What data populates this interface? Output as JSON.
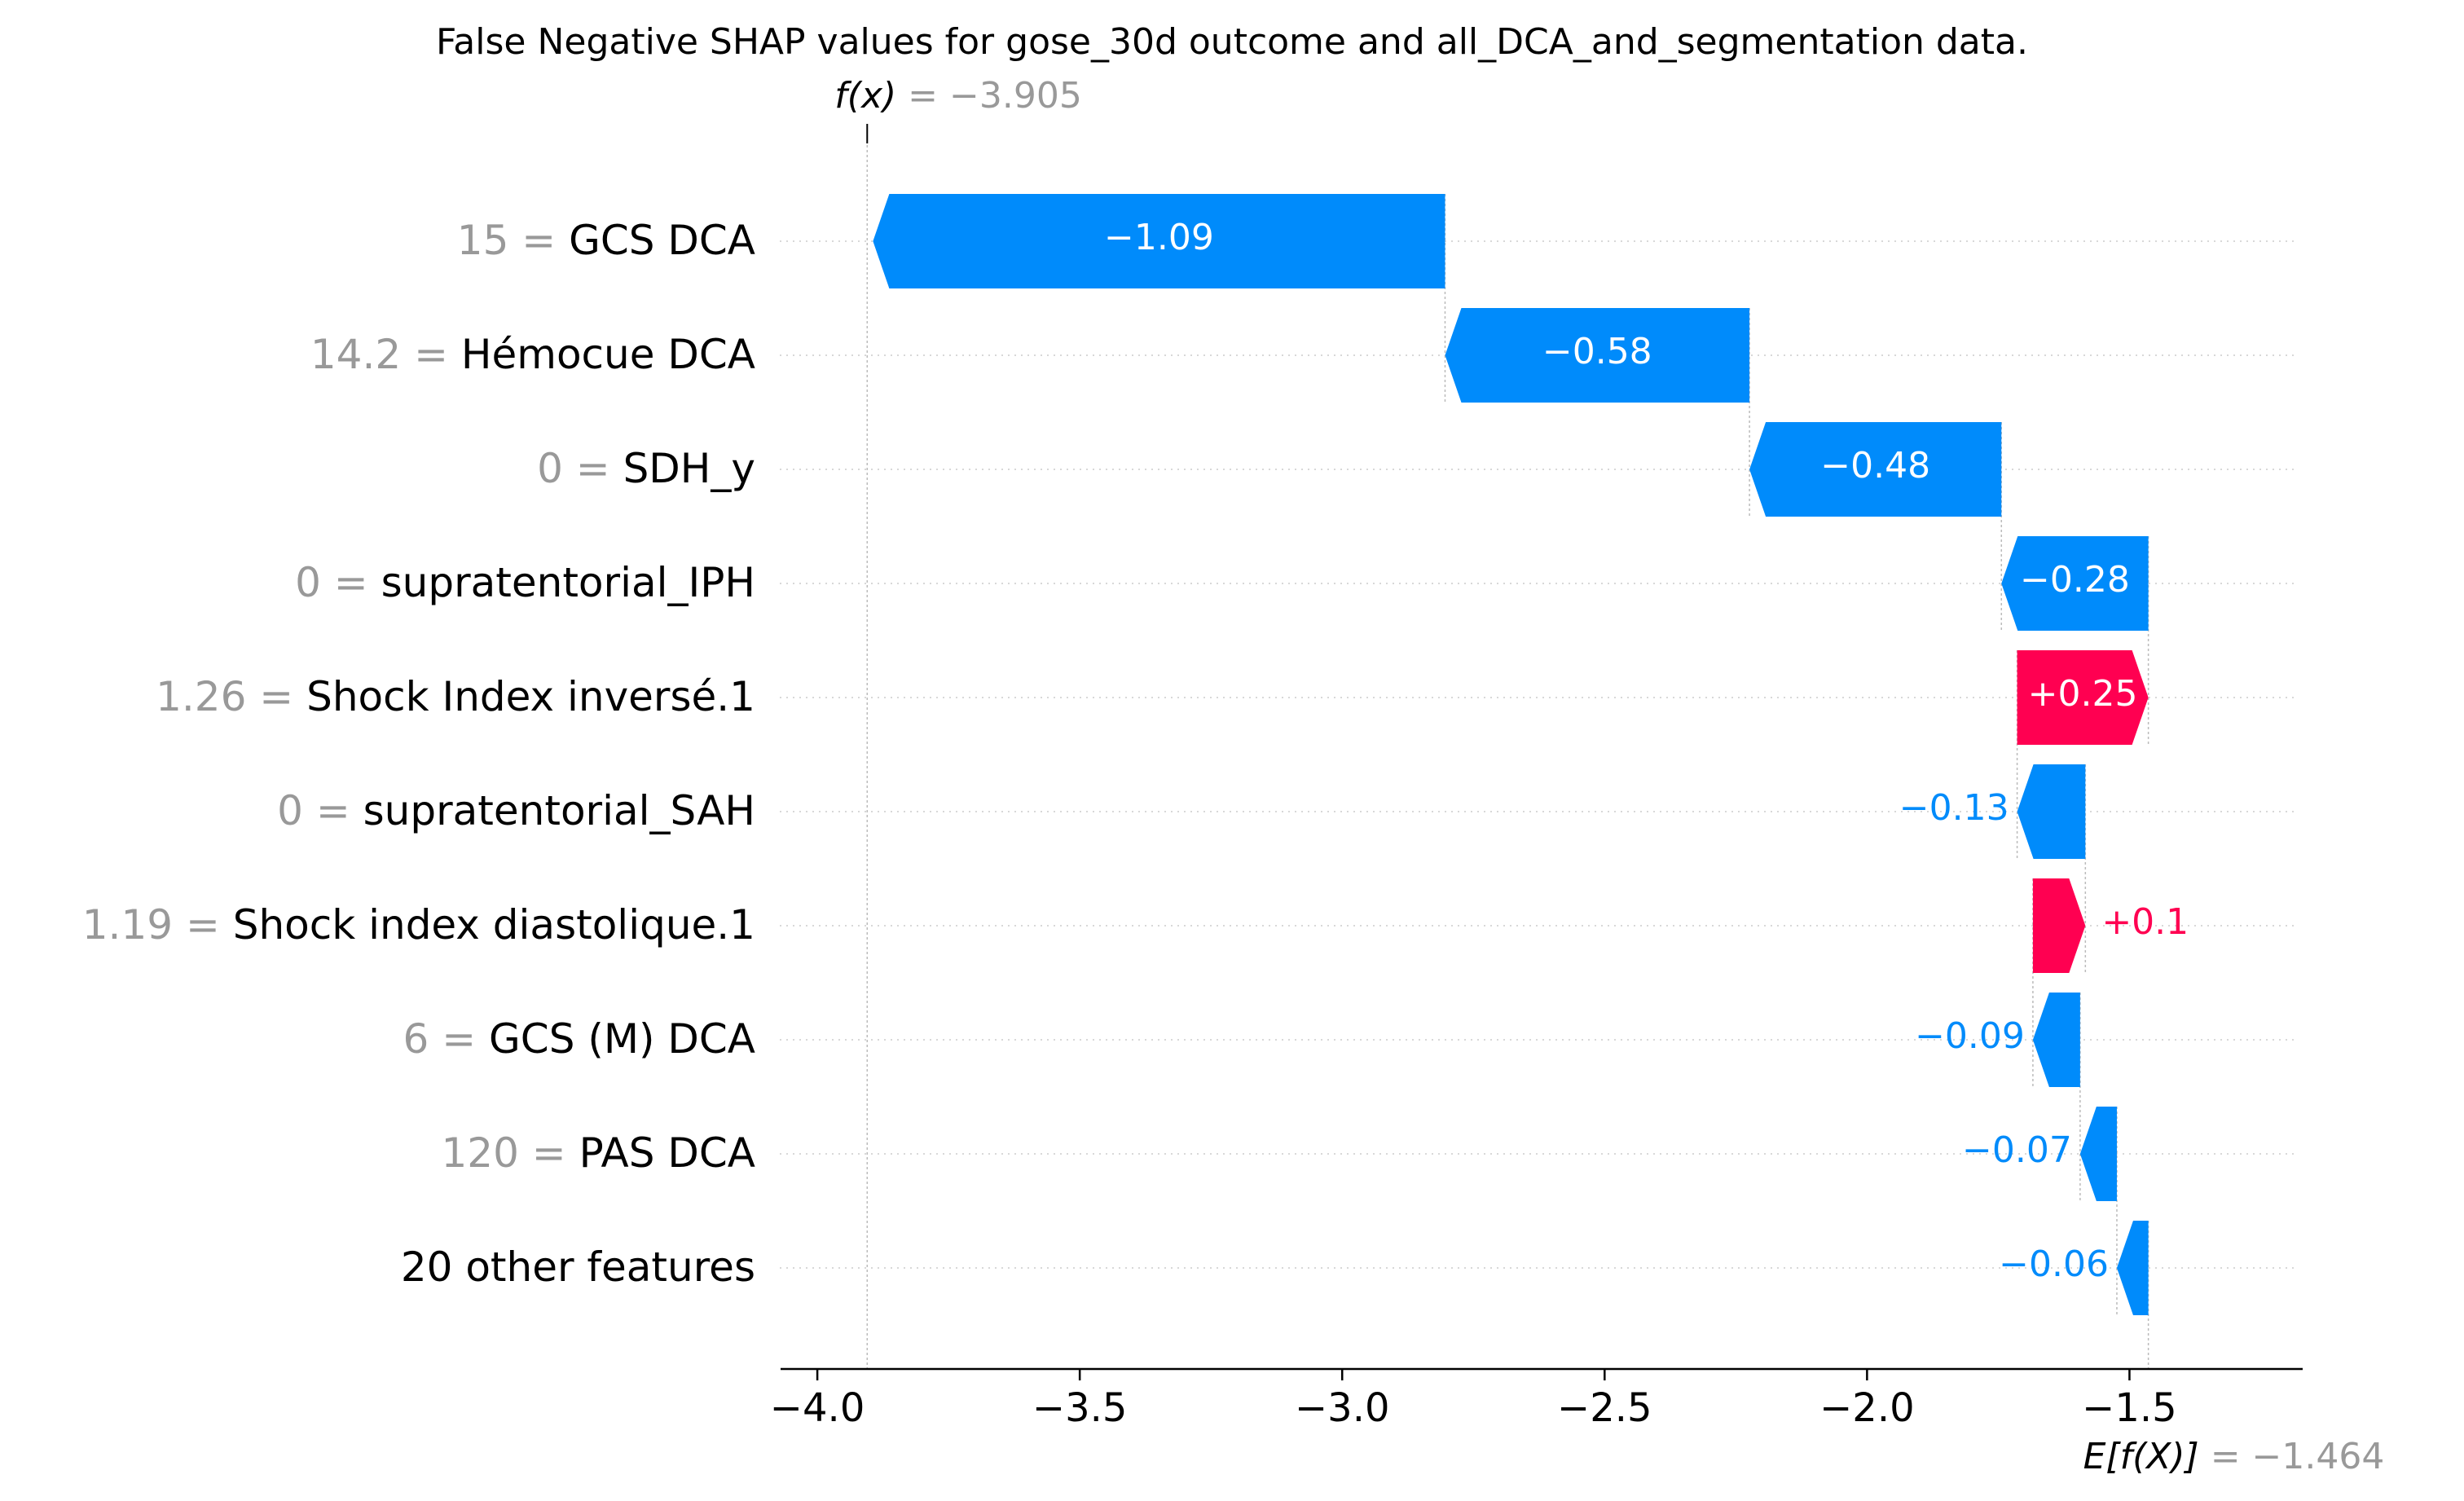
{
  "chart_data": {
    "type": "waterfall",
    "title": "False Negative SHAP values for gose_30d outcome and all_DCA_and_segmentation data.",
    "fx": {
      "label": "f(x)",
      "value_text": "= −3.905",
      "value": -3.905
    },
    "efx": {
      "label": "E[f(X)]",
      "value_text": "= −1.464",
      "value": -1.464
    },
    "xlim": [
      -4.07,
      -1.17
    ],
    "xticks": [
      {
        "value": -4.0,
        "label": "−4.0"
      },
      {
        "value": -3.5,
        "label": "−3.5"
      },
      {
        "value": -3.0,
        "label": "−3.0"
      },
      {
        "value": -2.5,
        "label": "−2.5"
      },
      {
        "value": -2.0,
        "label": "−2.0"
      },
      {
        "value": -1.5,
        "label": "−1.5"
      }
    ],
    "features": [
      {
        "value_text": "15",
        "name": "GCS DCA",
        "shap": -1.09,
        "label": "−1.09"
      },
      {
        "value_text": "14.2",
        "name": "Hémocue DCA",
        "shap": -0.58,
        "label": "−0.58"
      },
      {
        "value_text": "0",
        "name": "SDH_y",
        "shap": -0.48,
        "label": "−0.48"
      },
      {
        "value_text": "0",
        "name": "supratentorial_IPH",
        "shap": -0.28,
        "label": "−0.28"
      },
      {
        "value_text": "1.26",
        "name": "Shock Index inversé.1",
        "shap": 0.25,
        "label": "+0.25"
      },
      {
        "value_text": "0",
        "name": "supratentorial_SAH",
        "shap": -0.13,
        "label": "−0.13"
      },
      {
        "value_text": "1.19",
        "name": "Shock index diastolique.1",
        "shap": 0.1,
        "label": "+0.1"
      },
      {
        "value_text": "6",
        "name": "GCS (M) DCA",
        "shap": -0.09,
        "label": "−0.09"
      },
      {
        "value_text": "120",
        "name": "PAS DCA",
        "shap": -0.07,
        "label": "−0.07"
      },
      {
        "value_text": "",
        "name": "20 other features",
        "shap": -0.06,
        "label": "−0.06"
      }
    ],
    "colors": {
      "negative": "#008bfb",
      "positive": "#ff0051",
      "gray": "#999999",
      "text": "#000000"
    }
  }
}
